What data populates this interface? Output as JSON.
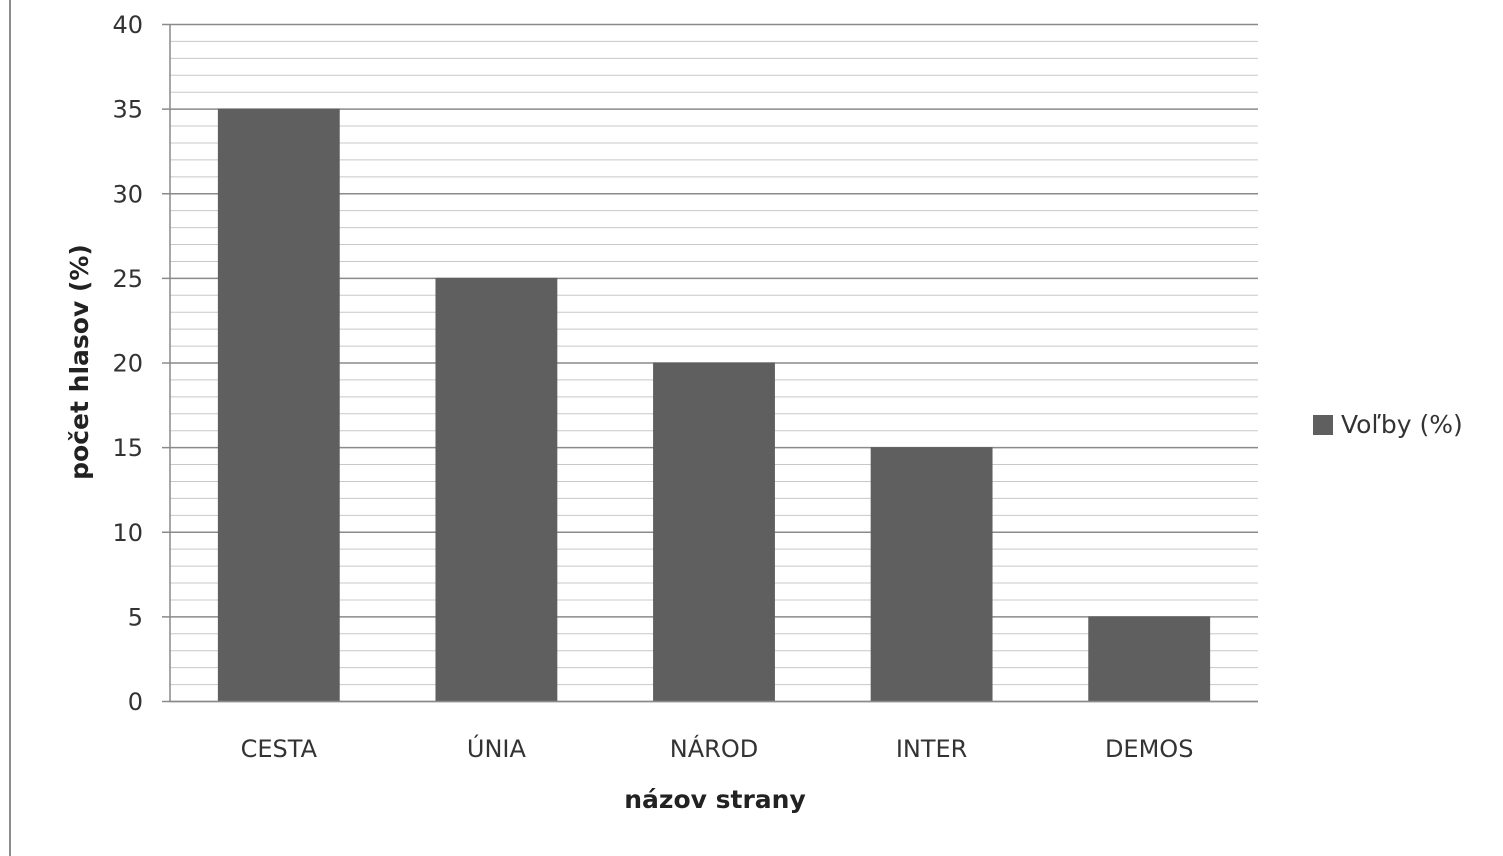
{
  "chart_data": {
    "type": "bar",
    "categories": [
      "CESTA",
      "ÚNIA",
      "NÁROD",
      "INTER",
      "DEMOS"
    ],
    "series": [
      {
        "name": "Voľby (%)",
        "values": [
          35,
          25,
          20,
          15,
          5
        ],
        "color": "#5f5f5f"
      }
    ],
    "xlabel": "názov strany",
    "ylabel": "počet hlasov (%)",
    "ylim": [
      0,
      40
    ],
    "yticks": [
      0,
      5,
      10,
      15,
      20,
      25,
      30,
      35,
      40
    ],
    "minor_grid_step": 1,
    "grid": true,
    "legend_position": "right",
    "colors": {
      "bar": "#5f5f5f",
      "major_grid": "#8a8a8a",
      "minor_grid": "#c8c8c8"
    }
  }
}
